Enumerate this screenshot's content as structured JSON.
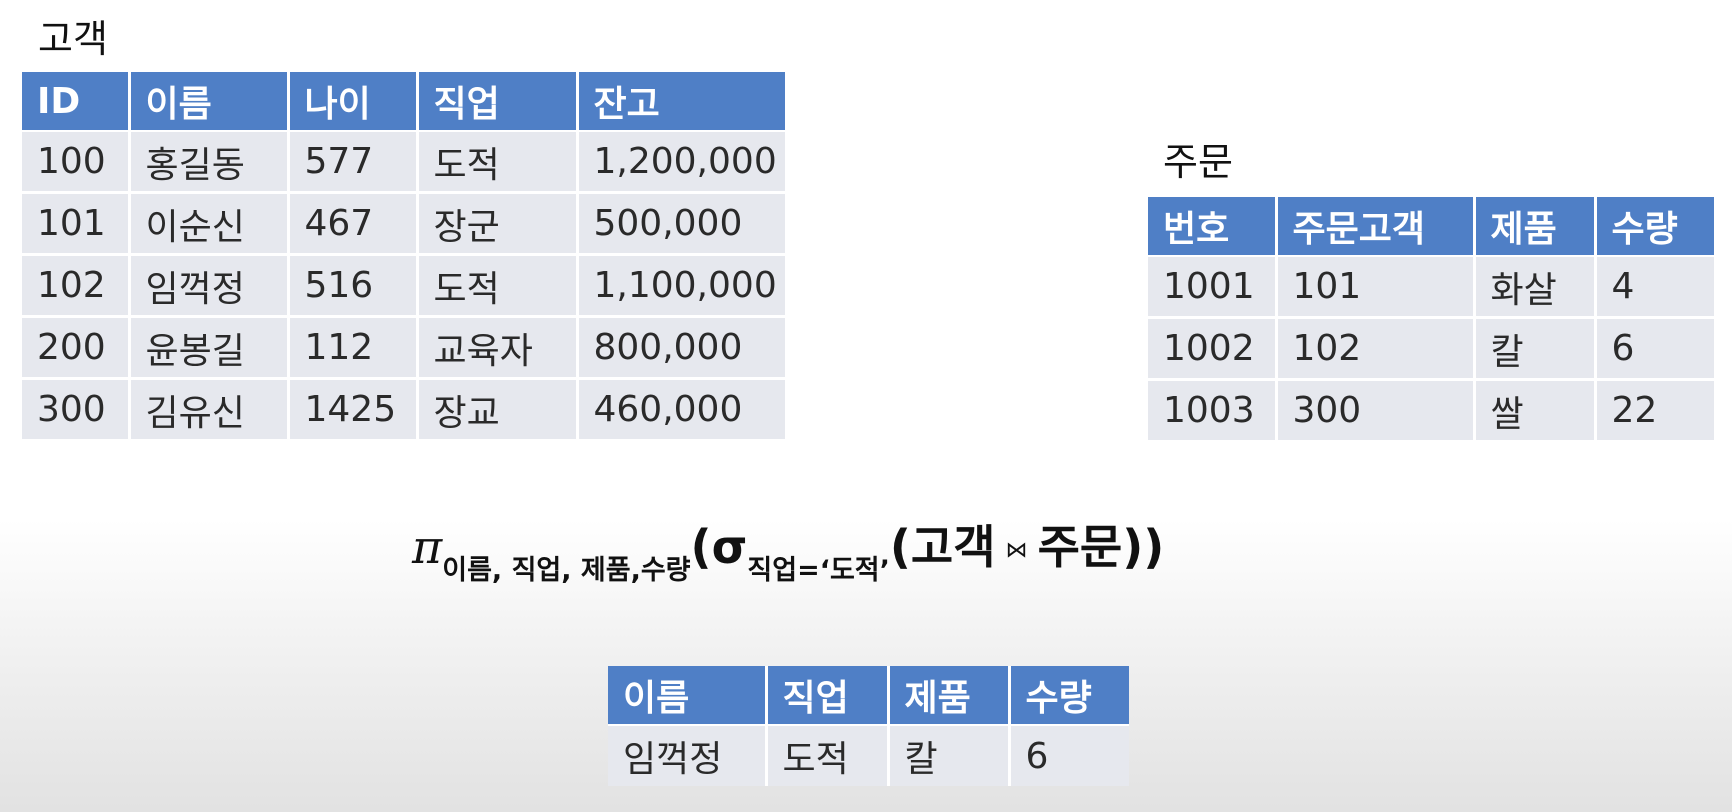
{
  "customer": {
    "caption": "고객",
    "columns": [
      "ID",
      "이름",
      "나이",
      "직업",
      "잔고"
    ],
    "rows": [
      [
        "100",
        "홍길동",
        "577",
        "도적",
        "1,200,000"
      ],
      [
        "101",
        "이순신",
        "467",
        "장군",
        "500,000"
      ],
      [
        "102",
        "임꺽정",
        "516",
        "도적",
        "1,100,000"
      ],
      [
        "200",
        "윤봉길",
        "112",
        "교육자",
        "800,000"
      ],
      [
        "300",
        "김유신",
        "1425",
        "장교",
        "460,000"
      ]
    ]
  },
  "order": {
    "caption": "주문",
    "columns": [
      "번호",
      "주문고객",
      "제품",
      "수량"
    ],
    "rows": [
      [
        "1001",
        "101",
        "화살",
        "4"
      ],
      [
        "1002",
        "102",
        "칼",
        "6"
      ],
      [
        "1003",
        "300",
        "쌀",
        "22"
      ]
    ]
  },
  "expression": {
    "projection_symbol": "π",
    "projection_attributes": "이름, 직업, 제품,수량",
    "open_paren_outer": "(",
    "selection_symbol": "σ",
    "selection_condition": "직업=‘도적’",
    "open_paren_inner": "(",
    "left_relation": "고객",
    "join_symbol": "⋈",
    "right_relation": "주문",
    "close_parens": "))"
  },
  "result": {
    "columns": [
      "이름",
      "직업",
      "제품",
      "수량"
    ],
    "rows": [
      [
        "임꺽정",
        "도적",
        "칼",
        "6"
      ]
    ]
  }
}
